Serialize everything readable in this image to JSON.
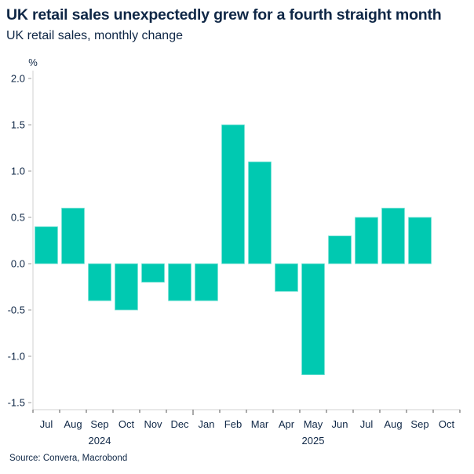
{
  "header": {
    "title": "UK retail sales unexpectedly grew for a fourth straight month",
    "subtitle": "UK retail sales, monthly change"
  },
  "footer": {
    "source": "Source: Convera, Macrobond"
  },
  "colors": {
    "bar": "#00C9B1",
    "bar_edge": "#7FE3D8",
    "axis": "#d0d0d0",
    "text": "#0f2746"
  },
  "chart_data": {
    "type": "bar",
    "title": "UK retail sales unexpectedly grew for a fourth straight month",
    "subtitle": "UK retail sales, monthly change",
    "xlabel": "",
    "ylabel": "%",
    "ylim": [
      -1.6,
      2.0
    ],
    "yticks": [
      2.0,
      1.5,
      1.0,
      0.5,
      0.0,
      -0.5,
      -1.0,
      -1.5
    ],
    "ytick_labels": [
      "2.0",
      "1.5",
      "1.0",
      "0.5",
      "0.0",
      "-0.5",
      "-1.0",
      "-1.5"
    ],
    "categories": [
      "Jul",
      "Aug",
      "Sep",
      "Oct",
      "Nov",
      "Dec",
      "Jan",
      "Feb",
      "Mar",
      "Apr",
      "May",
      "Jun",
      "Jul",
      "Aug",
      "Sep",
      "Oct"
    ],
    "years": [
      {
        "label": "2024",
        "center_category": "Sep"
      },
      {
        "label": "2025",
        "center_category": "May"
      }
    ],
    "year_boundary_after_index": 5,
    "values": [
      0.4,
      0.6,
      -0.4,
      -0.5,
      -0.2,
      -0.4,
      -0.4,
      1.5,
      1.1,
      -0.3,
      -1.2,
      0.3,
      0.5,
      0.6,
      0.5,
      null
    ],
    "grid": false,
    "legend": "none",
    "source": "Source: Convera, Macrobond"
  }
}
